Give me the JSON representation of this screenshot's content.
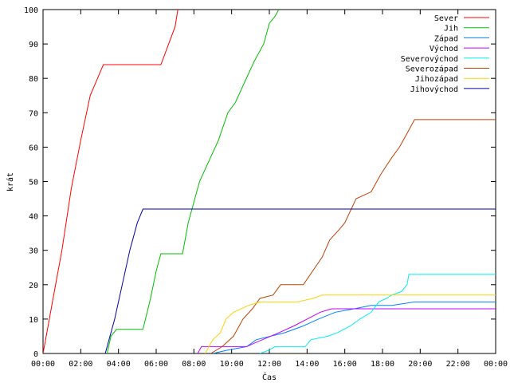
{
  "chart_data": {
    "type": "line",
    "title": "",
    "xlabel": "Čas",
    "ylabel": "krát",
    "xlim": [
      0,
      24
    ],
    "ylim": [
      0,
      100
    ],
    "x_tick_labels": [
      "00:00",
      "02:00",
      "04:00",
      "06:00",
      "08:00",
      "10:00",
      "12:00",
      "14:00",
      "16:00",
      "18:00",
      "20:00",
      "22:00",
      "00:00"
    ],
    "x_tick_values": [
      0,
      2,
      4,
      6,
      8,
      10,
      12,
      14,
      16,
      18,
      20,
      22,
      24
    ],
    "y_ticks": [
      0,
      10,
      20,
      30,
      40,
      50,
      60,
      70,
      80,
      90,
      100
    ],
    "grid": false,
    "legend_position": "top-right",
    "series": [
      {
        "name": "Sever",
        "color": "#ff0000",
        "points": [
          [
            0,
            0
          ],
          [
            0.1,
            3
          ],
          [
            0.5,
            15
          ],
          [
            1,
            30
          ],
          [
            1.5,
            48
          ],
          [
            2,
            62
          ],
          [
            2.5,
            75
          ],
          [
            3.2,
            84
          ],
          [
            6.25,
            84
          ],
          [
            7,
            95
          ],
          [
            7.15,
            100
          ]
        ]
      },
      {
        "name": "Jih",
        "color": "#00c000",
        "points": [
          [
            3.4,
            0
          ],
          [
            3.6,
            5
          ],
          [
            3.9,
            7
          ],
          [
            5.3,
            7
          ],
          [
            5.7,
            16
          ],
          [
            6,
            24
          ],
          [
            6.25,
            29
          ],
          [
            7.4,
            29
          ],
          [
            7.7,
            38
          ],
          [
            8,
            44
          ],
          [
            8.3,
            50
          ],
          [
            8.8,
            56
          ],
          [
            9.3,
            62
          ],
          [
            9.8,
            70
          ],
          [
            10.2,
            73
          ],
          [
            10.7,
            79
          ],
          [
            11.2,
            85
          ],
          [
            11.7,
            90
          ],
          [
            12,
            96
          ],
          [
            12.3,
            98
          ],
          [
            12.5,
            100
          ]
        ]
      },
      {
        "name": "Západ",
        "color": "#0080ff",
        "points": [
          [
            9,
            0
          ],
          [
            9.8,
            1
          ],
          [
            10.8,
            2
          ],
          [
            11.3,
            4
          ],
          [
            12.8,
            6
          ],
          [
            13.8,
            8
          ],
          [
            14.6,
            10
          ],
          [
            15.5,
            12
          ],
          [
            16.5,
            13
          ],
          [
            17.4,
            14
          ],
          [
            18.5,
            14
          ],
          [
            19.7,
            15
          ],
          [
            24,
            15
          ]
        ]
      },
      {
        "name": "Východ",
        "color": "#c000ff",
        "points": [
          [
            8.2,
            0
          ],
          [
            8.4,
            2
          ],
          [
            10.8,
            2
          ],
          [
            11.2,
            3
          ],
          [
            12.5,
            6
          ],
          [
            13.3,
            8
          ],
          [
            14,
            10
          ],
          [
            14.7,
            12
          ],
          [
            15.3,
            13
          ],
          [
            24,
            13
          ]
        ]
      },
      {
        "name": "Severovýchod",
        "color": "#00eeee",
        "points": [
          [
            11.5,
            0
          ],
          [
            12,
            1
          ],
          [
            12.3,
            2
          ],
          [
            13.9,
            2
          ],
          [
            14.2,
            4
          ],
          [
            15.1,
            5
          ],
          [
            15.6,
            6
          ],
          [
            16.3,
            8
          ],
          [
            16.8,
            10
          ],
          [
            17.4,
            12
          ],
          [
            17.8,
            15
          ],
          [
            18.2,
            16
          ],
          [
            18.5,
            17
          ],
          [
            19,
            18
          ],
          [
            19.3,
            20
          ],
          [
            19.4,
            23
          ],
          [
            24,
            23
          ]
        ]
      },
      {
        "name": "Severozápad",
        "color": "#c04000",
        "points": [
          [
            8.9,
            0
          ],
          [
            9.5,
            2
          ],
          [
            10.1,
            5
          ],
          [
            10.6,
            10
          ],
          [
            11.1,
            13
          ],
          [
            11.5,
            16
          ],
          [
            12.2,
            17
          ],
          [
            12.6,
            20
          ],
          [
            13.8,
            20
          ],
          [
            14.3,
            24
          ],
          [
            14.8,
            28
          ],
          [
            15.2,
            33
          ],
          [
            15.7,
            36
          ],
          [
            16,
            38
          ],
          [
            16.6,
            45
          ],
          [
            17.4,
            47
          ],
          [
            17.9,
            52
          ],
          [
            18.5,
            57
          ],
          [
            18.9,
            60
          ],
          [
            19.3,
            64
          ],
          [
            19.7,
            68
          ],
          [
            24,
            68
          ]
        ]
      },
      {
        "name": "Jihozápad",
        "color": "#ffd000",
        "points": [
          [
            8.6,
            0
          ],
          [
            9,
            4
          ],
          [
            9.4,
            6
          ],
          [
            9.7,
            10
          ],
          [
            10.1,
            12
          ],
          [
            10.9,
            14
          ],
          [
            11.5,
            15
          ],
          [
            13.5,
            15
          ],
          [
            14.3,
            16
          ],
          [
            14.8,
            17
          ],
          [
            24,
            17
          ]
        ]
      },
      {
        "name": "Jihovýchod",
        "color": "#0000a0",
        "points": [
          [
            3.3,
            0
          ],
          [
            3.5,
            4
          ],
          [
            3.8,
            10
          ],
          [
            4.2,
            20
          ],
          [
            4.6,
            30
          ],
          [
            5,
            38
          ],
          [
            5.3,
            42
          ],
          [
            24,
            42
          ]
        ]
      }
    ]
  }
}
